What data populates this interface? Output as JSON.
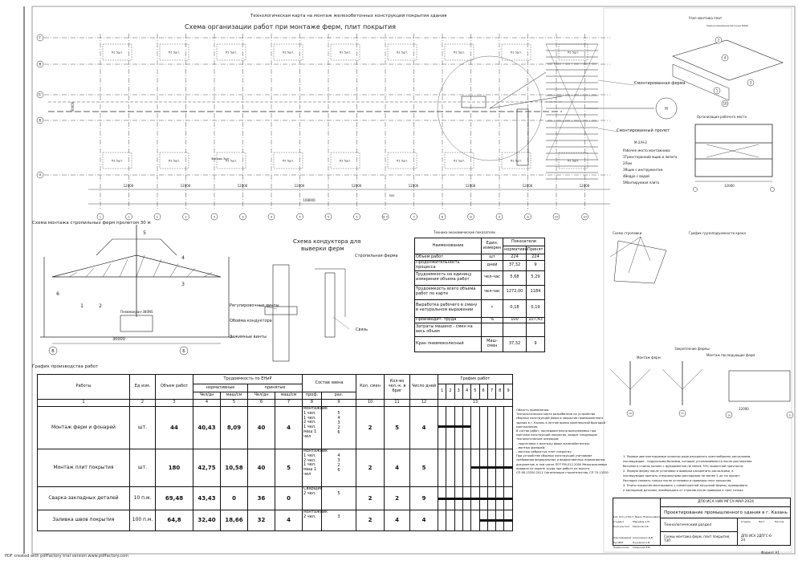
{
  "sheet": {
    "title": "Технологическая карта на монтаж железобетонных конструкций покрытия здания",
    "footer": "PDF created with pdfFactory trial version www.pdffactory.com"
  },
  "plan": {
    "title": "Схема организации работ при монтаже ферм, плит покрытия",
    "slab_label": "П1 5шт.",
    "lantern_label": "Фонарь 5шт.",
    "truss_label": "Смонтированная ферма",
    "span_label": "Смонтированный пролет",
    "crane_label": "Пневмокран",
    "span_dims": [
      "12000",
      "12000",
      "12000",
      "12000",
      "12000",
      "12000",
      "12000",
      "12000",
      "12000"
    ],
    "total_dim": "108000",
    "height_dim": "30000",
    "axis_numbers": [
      "1",
      "1",
      "2",
      "2",
      "3",
      "3",
      "4",
      "4",
      "5",
      "5",
      "6 7",
      "7",
      "8",
      "8",
      "9",
      "9",
      "10",
      "10"
    ],
    "row_axes": [
      "Г",
      "В",
      "Б'",
      "Б",
      "А"
    ],
    "dim_small": "500"
  },
  "section": {
    "title": "Схема монтажа стропильных ферм пролетом 30 м",
    "marks": [
      "1",
      "2",
      "3",
      "4",
      "5",
      "6"
    ],
    "span": "30000",
    "axes": [
      "В",
      "Б"
    ],
    "crane": "Пневмокран-380NS"
  },
  "jig": {
    "title_line1": "Схема кондуктора для",
    "title_line2": "выверки ферм",
    "labels": [
      "Стропильная ферма",
      "Регулировочные винты",
      "Обойма кондуктора",
      "Зажимные винты",
      "Связь"
    ]
  },
  "tep": {
    "title": "Технико-экономические показатели",
    "headers": {
      "name": "Наименование",
      "unit": "Един. измерен",
      "group": "Показатели",
      "norm": "нормативн.",
      "accepted": "Принят."
    },
    "rows": [
      {
        "name": "Объем работ",
        "unit": "шт",
        "norm": "224",
        "accepted": "224"
      },
      {
        "name": "Продолжительность процесса",
        "unit": "дней",
        "norm": "37,32",
        "accepted": "9"
      },
      {
        "name": "Трудоемкость на единицу измерения объема работ",
        "unit": "чел-час",
        "norm": "5,68",
        "accepted": "5,29"
      },
      {
        "name": "Трудоемкость всего объема работ по карте",
        "unit": "чел-час",
        "norm": "1272,00",
        "accepted": "1184"
      },
      {
        "name": "Выработка рабочего в смену в натуральном выражении",
        "unit": "т",
        "norm": "0,18",
        "accepted": "0,19"
      },
      {
        "name": "Производит. труда",
        "unit": "%",
        "norm": "100",
        "accepted": "107,43"
      },
      {
        "name": "Затраты машино - смен на весь объем",
        "unit": "",
        "norm": "",
        "accepted": ""
      },
      {
        "name": "Кран пневмоколесный",
        "unit": "Маш-смен",
        "norm": "37,32",
        "accepted": "9"
      }
    ]
  },
  "schedule": {
    "title": "График производства работ",
    "headers": {
      "works": "Работы",
      "unit": "Ед изм.",
      "volume": "Объем работ",
      "labor": "Трудоемкость по ЕНиР",
      "normative": "нормативные",
      "accepted": "принятые",
      "man_days": "Чел/дн",
      "mach_shifts": "маш/см",
      "crew": "Состав звена",
      "prof": "проф.",
      "grade": "раз.",
      "shifts": "Кол. смен",
      "workers": "Кол-во чел.-к. в бриг",
      "days": "Число дней",
      "chart": "График работ"
    },
    "col_numbers": [
      "1",
      "2",
      "3",
      "4",
      "5",
      "6",
      "7",
      "8",
      "9",
      "10",
      "11",
      "12",
      "13"
    ],
    "day_numbers": [
      "1",
      "2",
      "3",
      "4",
      "5",
      "6",
      "7",
      "8",
      "9"
    ],
    "rows": [
      {
        "work": "Монтаж ферм и фонарей",
        "unit": "шт.",
        "volume": "44",
        "n_man": "40,43",
        "n_mach": "8,09",
        "a_man": "40",
        "a_mach": "4",
        "prof": [
          "монтажник",
          "1 чел.",
          "1 чел.",
          "2 чел.",
          "1 чел.",
          "маш 1 чел"
        ],
        "grade": [
          "",
          "5",
          "4",
          "3",
          "2",
          "6"
        ],
        "shifts": "2",
        "workers": "5",
        "days": "4",
        "start": 0,
        "dur": 4
      },
      {
        "work": "Монтаж плит покрытия",
        "unit": "шт.",
        "volume": "180",
        "n_man": "42,75",
        "n_mach": "10,58",
        "a_man": "40",
        "a_mach": "5",
        "prof": [
          "монтажник",
          "1 чел.",
          "2 чел.",
          "1 чел.",
          "маш 1 чел"
        ],
        "grade": [
          "",
          "4",
          "3",
          "2",
          "6"
        ],
        "shifts": "2",
        "workers": "4",
        "days": "5",
        "start": 4,
        "dur": 5
      },
      {
        "work": "Сварка закладных деталей",
        "unit": "10 п.м.",
        "volume": "69,48",
        "n_man": "43,43",
        "n_mach": "0",
        "a_man": "36",
        "a_mach": "0",
        "prof": [
          "Сварщик",
          "2 чел."
        ],
        "grade": [
          "",
          "5"
        ],
        "shifts": "2",
        "workers": "2",
        "days": "9",
        "start": 0,
        "dur": 9
      },
      {
        "work": "Заливка швов покрытия",
        "unit": "100 п.м.",
        "volume": "64,8",
        "n_man": "32,40",
        "n_mach": "18,66",
        "a_man": "32",
        "a_mach": "4",
        "prof": [
          "монтажник",
          "2 чел."
        ],
        "grade": [
          "",
          "3"
        ],
        "shifts": "2",
        "workers": "4",
        "days": "4",
        "start": 5,
        "dur": 4
      }
    ]
  },
  "details": {
    "node_title": "Узел монтажа плит",
    "node_note": "Замоноличивание бетоном М200",
    "workplace_title": "Организация рабочего места",
    "workplace_dim": "12000",
    "legend_code": "М-2/Н-2",
    "legend": [
      "Рабочее место монтажника",
      "1Трехсторонний ящик и лопата",
      "2Лом",
      "3Ящик с инструментом",
      "4Ведро с водой",
      "5Монтируемая плита"
    ],
    "sling_title": "Схема строповки",
    "graph_title": "График грузоподъемности крана",
    "fix_title": "Закрепление фермы",
    "first_truss": "Монтаж ферм",
    "last_truss": "Монтаж последующих ферм",
    "fix_dim": "12000"
  },
  "notes": {
    "scope": [
      "Область применения.",
      "Технологическая карта разработана на устройство",
      "сборных конструкций ферм и покрытия промышленного",
      "здания в г. Казань в летнее время комплексной бригадой",
      "монтажников.",
      "В состав работ, последовательно выполняемых при",
      "монтаже конструкций покрытия, входят следующие",
      "технологические операции:",
      "- подготовка к монтажу ферм железобетонных;",
      "- монтаж фонарей;",
      "- монтаж ребристых плит покрытия",
      "При устройстве сборных конструкций учитывают",
      "требования федеральных и ведомственных нормативных",
      "документов, в том числе ПОТ РМ-012-2000 Межотраслевые",
      "правила по охране труда при работе на высоте,",
      "СП 48.13330.2011 Организация строительства, СП 70.13330"
    ],
    "steps": [
      "1. Первые две монтируемые колонны ряда раскрепить крестообразно расчалками,",
      "последующие - подкосными балками, которые устанавливаются после достижения",
      "бетоном в стыках колонн с фундаментом не менее 70% проектной прочности.",
      "2. Первую ферму после установки и выверки раскрепить расчалками, а",
      "последующие крепить специальными распорками не менее 3 шт на пролет.",
      "Распорки снимать только после установки и приварки плит покрытия.",
      "3. Плиты покрытия монтировать с симметричной загрузкой фермы, приваривать",
      "к закладным деталям, освобождать от стропов после приварки в трех точках."
    ]
  },
  "stamp": {
    "code": "ДП0 ИСА НИУ МГСУ-МАР-2024",
    "project": "Проектирование промышленного здания в г. Казань",
    "section": "Технологический раздел",
    "sheet_name": "Схемы монтажа ферм, плит покрытия, ТЭП",
    "org": "ДП0 ИСА 2ДПГС-6-24",
    "stage": "Стадия",
    "sheet": "Лист",
    "sheets": "Листов",
    "format": "Формат А1",
    "cols": [
      "Изм.",
      "Кол.уч",
      "Лист",
      "№док.",
      "Подпись",
      "Дата"
    ],
    "people": [
      {
        "role": "Студент",
        "name": "Маруфов А.М."
      },
      {
        "role": "Консультант",
        "name": "Малахов А.В."
      },
      {
        "role": "Зав.кафедрой",
        "name": "Алексеенко Д.В."
      },
      {
        "role": "Рук.ВКР",
        "name": "Лукьянов А.В."
      },
      {
        "role": "Нормоконтр.",
        "name": "Смирнова Е.В."
      }
    ]
  }
}
